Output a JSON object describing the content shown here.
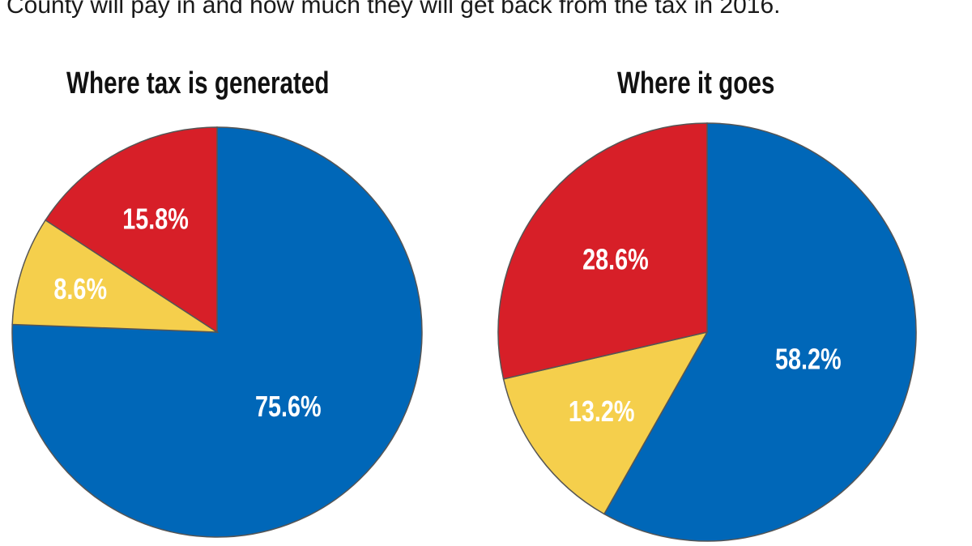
{
  "intro_text": "County will pay in and how much they will get back from the tax in 2016.",
  "colors": {
    "blue": "#0067b8",
    "red": "#d71f28",
    "yellow": "#f5cf4c",
    "outline": "#555555"
  },
  "chart_data": [
    {
      "type": "pie",
      "title": "Where tax is generated",
      "slices": [
        {
          "label": "75.6%",
          "value": 75.6,
          "color": "#0067b8"
        },
        {
          "label": "8.6%",
          "value": 8.6,
          "color": "#f5cf4c"
        },
        {
          "label": "15.8%",
          "value": 15.8,
          "color": "#d71f28"
        }
      ]
    },
    {
      "type": "pie",
      "title": "Where it goes",
      "slices": [
        {
          "label": "58.2%",
          "value": 58.2,
          "color": "#0067b8"
        },
        {
          "label": "13.2%",
          "value": 13.2,
          "color": "#f5cf4c"
        },
        {
          "label": "28.6%",
          "value": 28.6,
          "color": "#d71f28"
        }
      ]
    }
  ]
}
